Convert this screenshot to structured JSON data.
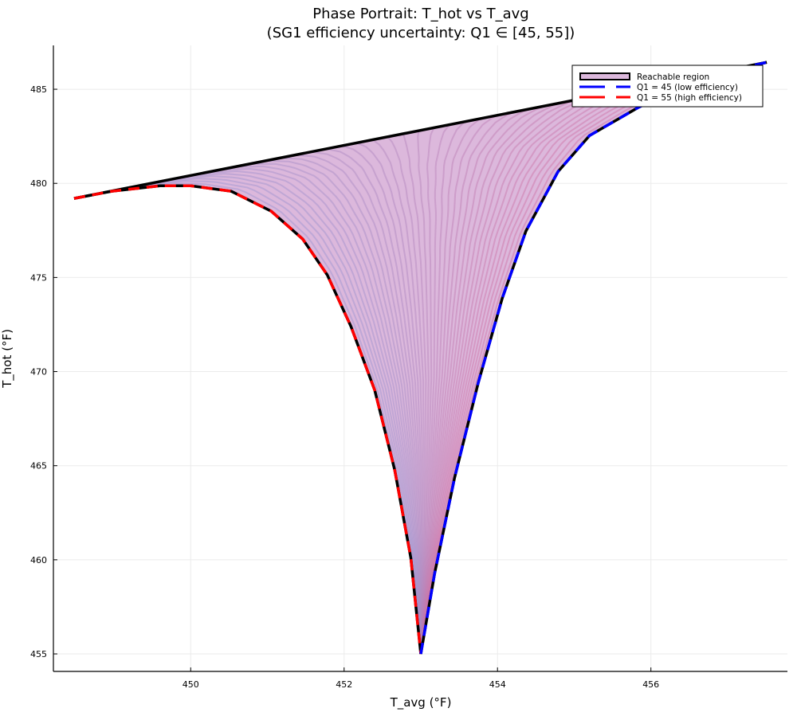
{
  "chart_data": {
    "type": "line",
    "title": "Phase Portrait: T_hot vs T_avg",
    "subtitle": "(SG1 efficiency uncertainty: Q1 ∈ [45, 55])",
    "xlabel": "T_avg (°F)",
    "ylabel": "T_hot (°F)",
    "xlim": [
      448.21,
      457.78
    ],
    "ylim": [
      454.07,
      487.33
    ],
    "xticks": [
      450,
      452,
      454,
      456
    ],
    "yticks": [
      455,
      460,
      465,
      470,
      475,
      480,
      485
    ],
    "grid": true,
    "legend_position": "top-right",
    "legend": [
      {
        "label": "Reachable region",
        "kind": "fill",
        "color": "#dcb8dc"
      },
      {
        "label": "Q1 = 45 (low efficiency)",
        "kind": "dashed",
        "color": "#0000ff"
      },
      {
        "label": "Q1 = 55 (high efficiency)",
        "kind": "dashed",
        "color": "#ff0000"
      }
    ],
    "series": [
      {
        "name": "Q1 = 55 (high efficiency)",
        "color": "#ff0000",
        "x": [
          448.48,
          448.97,
          449.6,
          450.0,
          450.53,
          451.05,
          451.46,
          451.78,
          452.09,
          452.4,
          452.66,
          452.87,
          453.0
        ],
        "y": [
          479.2,
          479.58,
          479.87,
          479.87,
          479.58,
          478.52,
          477.04,
          475.14,
          472.39,
          469.0,
          464.77,
          460.1,
          455.0
        ]
      },
      {
        "name": "Q1 = 45 (low efficiency)",
        "color": "#0000ff",
        "x": [
          453.0,
          453.18,
          453.44,
          453.75,
          454.06,
          454.37,
          454.79,
          455.2,
          455.83,
          456.35,
          456.86,
          457.51
        ],
        "y": [
          455.0,
          459.27,
          464.35,
          469.42,
          473.87,
          477.46,
          480.63,
          482.54,
          484.02,
          485.08,
          485.84,
          486.43
        ]
      }
    ],
    "region_top_edge": {
      "x": [
        448.48,
        457.51
      ],
      "y": [
        479.2,
        486.43
      ]
    }
  }
}
